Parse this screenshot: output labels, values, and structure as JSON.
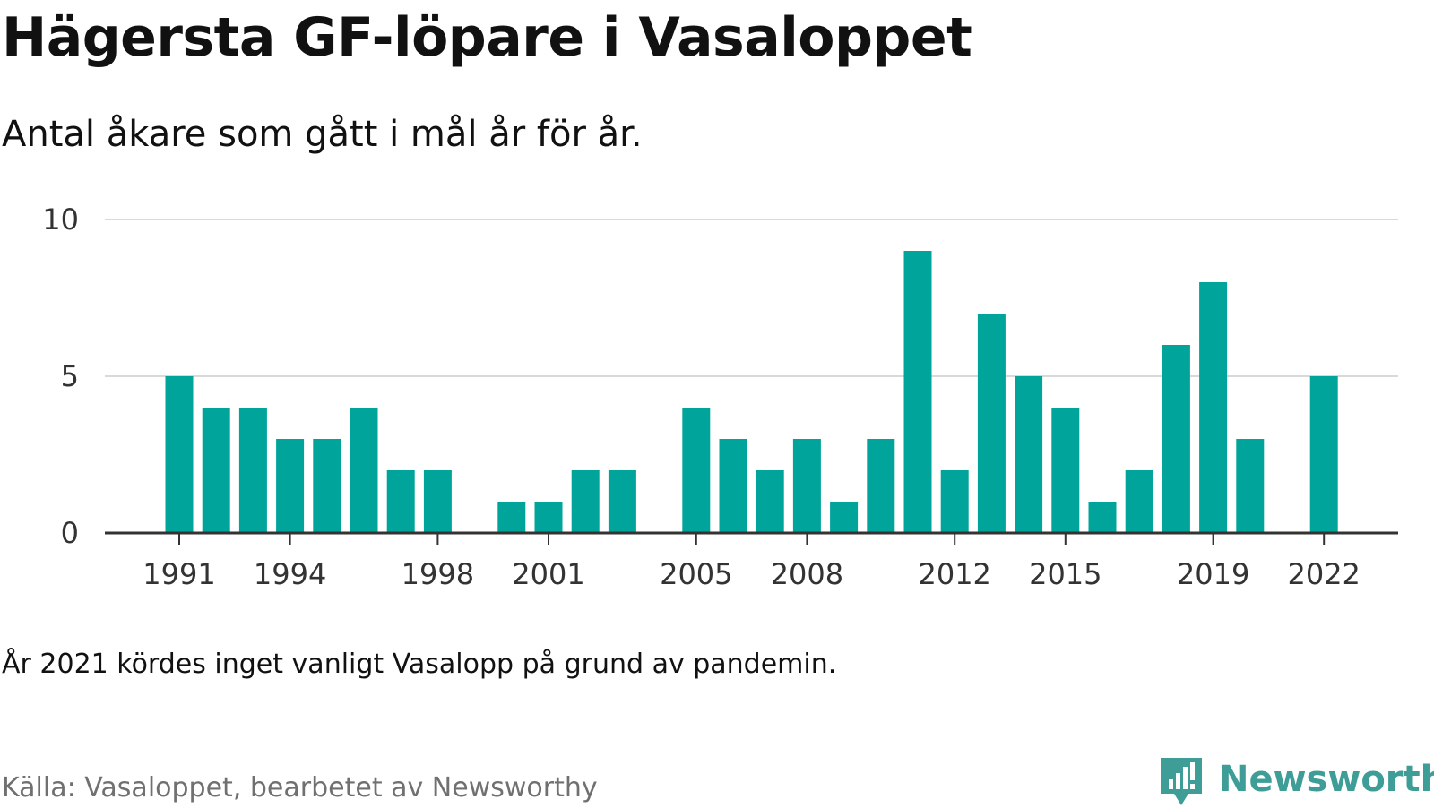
{
  "title": "Hägersta GF-löpare i Vasaloppet",
  "subtitle": "Antal åkare som gått i mål år för år.",
  "note": "År 2021 kördes inget vanligt Vasalopp på grund av pandemin.",
  "source": "Källa: Vasaloppet, bearbetet av Newsworthy",
  "brand": {
    "name": "Newsworthy",
    "logo_icon": "newsworthy-bar-chart-speech-bubble-icon"
  },
  "colors": {
    "bar": "#00a49a",
    "grid": "#d9d9d9",
    "axis": "#333333",
    "brand": "#3e9e97"
  },
  "chart_data": {
    "type": "bar",
    "categories": [
      1991,
      1992,
      1993,
      1994,
      1995,
      1996,
      1997,
      1998,
      1999,
      2000,
      2001,
      2002,
      2003,
      2004,
      2005,
      2006,
      2007,
      2008,
      2009,
      2010,
      2011,
      2012,
      2013,
      2014,
      2015,
      2016,
      2017,
      2018,
      2019,
      2020,
      2021,
      2022
    ],
    "values": [
      5,
      4,
      4,
      3,
      3,
      4,
      2,
      2,
      0,
      1,
      1,
      2,
      2,
      0,
      4,
      3,
      2,
      3,
      1,
      3,
      9,
      2,
      7,
      5,
      4,
      1,
      2,
      6,
      8,
      3,
      0,
      5
    ],
    "x_ticks": [
      "1991",
      "1994",
      "1998",
      "2001",
      "2005",
      "2008",
      "2012",
      "2015",
      "2019",
      "2022"
    ],
    "y_ticks": [
      "0",
      "5",
      "10"
    ],
    "ylim": [
      0,
      10
    ],
    "grid": true,
    "legend": "none"
  }
}
